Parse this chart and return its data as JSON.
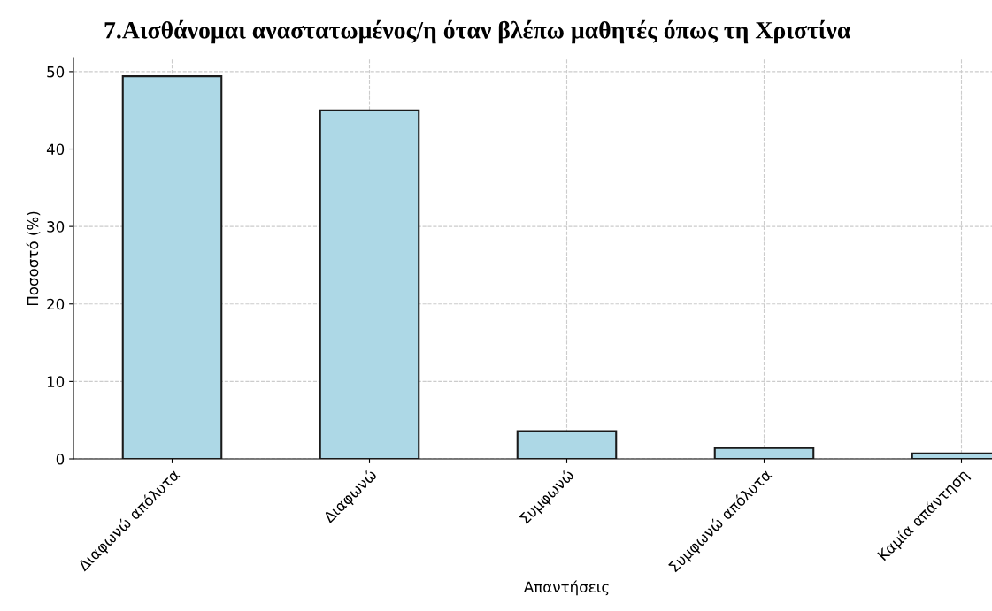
{
  "chart_data": {
    "type": "bar",
    "title": "7.Αισθάνομαι αναστατωμένος/η όταν βλέπω μαθητές όπως τη Χριστίνα",
    "xlabel": "Απαντήσεις",
    "ylabel": "Ποσοστό (%)",
    "categories": [
      "Διαφωνώ απόλυτα",
      "Διαφωνώ",
      "Συμφωνώ",
      "Συμφωνώ απόλυτα",
      "Καμία απάντηση"
    ],
    "values": [
      49.4,
      45.0,
      3.6,
      1.4,
      0.7
    ],
    "color": "#add8e6",
    "ylim": [
      0,
      51.7
    ],
    "yticks": [
      0,
      10,
      20,
      30,
      40,
      50
    ],
    "grid": true
  }
}
